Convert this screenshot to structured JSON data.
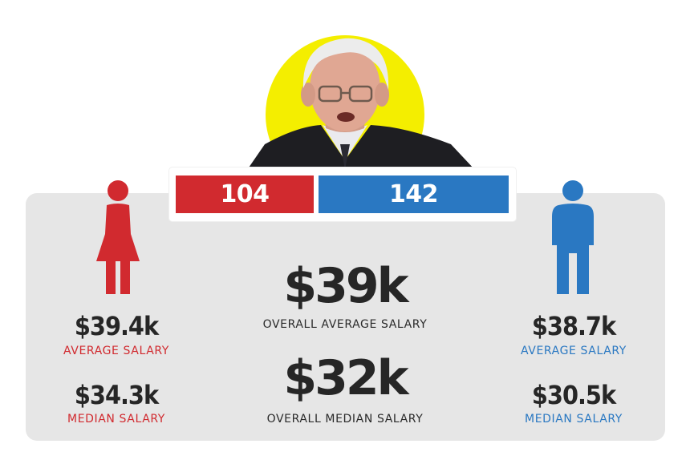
{
  "colors": {
    "female": "#d12a2f",
    "male": "#2a78c2",
    "panel": "#e6e6e6",
    "highlight": "#f4ee00"
  },
  "counts": {
    "female": "104",
    "male": "142"
  },
  "female": {
    "icon": "female-person-icon",
    "average_value": "$39.4k",
    "average_label": "AVERAGE SALARY",
    "median_value": "$34.3k",
    "median_label": "MEDIAN SALARY"
  },
  "male": {
    "icon": "male-person-icon",
    "average_value": "$38.7k",
    "average_label": "AVERAGE SALARY",
    "median_value": "$30.5k",
    "median_label": "MEDIAN SALARY"
  },
  "overall": {
    "average_value": "$39k",
    "average_label": "OVERALL AVERAGE SALARY",
    "median_value": "$32k",
    "median_label": "OVERALL MEDIAN SALARY"
  }
}
